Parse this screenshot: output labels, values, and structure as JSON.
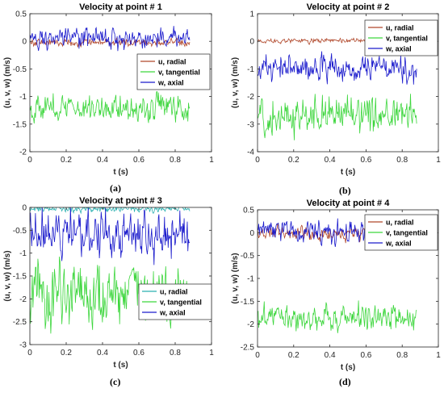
{
  "labels": [
    "(a)",
    "(b)",
    "(c)",
    "(d)"
  ],
  "chart_data": [
    {
      "type": "line",
      "title": "Velocity at point # 1",
      "xlabel": "t (s)",
      "ylabel": "(u, v, w) (m/s)",
      "xlim": [
        0,
        1
      ],
      "ylim": [
        -2,
        0.5
      ],
      "xticks": [
        "0",
        "0.2",
        "0.4",
        "0.6",
        "0.8",
        "1"
      ],
      "yticks": [
        "-2",
        "-1.5",
        "-1",
        "-0.5",
        "0",
        "0.5"
      ],
      "x_range": [
        0,
        0.88
      ],
      "legend": "right",
      "series": [
        {
          "name": "u, radial",
          "color": "#b0472a",
          "mean": -0.02,
          "amp": 0.05
        },
        {
          "name": "v, tangential",
          "color": "#3cd63c",
          "mean": -1.2,
          "amp": 0.17
        },
        {
          "name": "w, axial",
          "color": "#1a1acc",
          "mean": 0.05,
          "amp": 0.13
        }
      ]
    },
    {
      "type": "line",
      "title": "Velocity at point # 2",
      "xlabel": "t (s)",
      "ylabel": "(u, v, w) (m/s)",
      "xlim": [
        0,
        1
      ],
      "ylim": [
        -4,
        1
      ],
      "xticks": [
        "0",
        "0.2",
        "0.4",
        "0.6",
        "0.8",
        "1"
      ],
      "yticks": [
        "-4",
        "-3",
        "-2",
        "-1",
        "0",
        "1"
      ],
      "x_range": [
        0,
        0.88
      ],
      "legend": "top-right",
      "series": [
        {
          "name": "u, radial",
          "color": "#b0472a",
          "mean": 0.02,
          "amp": 0.06
        },
        {
          "name": "v, tangential",
          "color": "#3cd63c",
          "mean": -2.7,
          "amp": 0.45
        },
        {
          "name": "w, axial",
          "color": "#1a1acc",
          "mean": -1.0,
          "amp": 0.35
        }
      ]
    },
    {
      "type": "line",
      "title": "Velocity at point # 3",
      "xlabel": "t (s)",
      "ylabel": "(u, v, w) (m/s)",
      "xlim": [
        0,
        1
      ],
      "ylim": [
        -3,
        0
      ],
      "xticks": [
        "0",
        "0.2",
        "0.4",
        "0.6",
        "0.8",
        "1"
      ],
      "yticks": [
        "-3",
        "-2.5",
        "-2",
        "-1.5",
        "-1",
        "-0.5",
        "0"
      ],
      "x_range": [
        0,
        0.88
      ],
      "legend": "bottom-right",
      "series": [
        {
          "name": "u, radial",
          "color": "#2ab0b0",
          "mean": -0.03,
          "amp": 0.05
        },
        {
          "name": "v, tangential",
          "color": "#3cd63c",
          "mean": -1.9,
          "amp": 0.5
        },
        {
          "name": "w, axial",
          "color": "#1a1acc",
          "mean": -0.55,
          "amp": 0.35
        }
      ]
    },
    {
      "type": "line",
      "title": "Velocity at point # 4",
      "xlabel": "t (s)",
      "ylabel": "(u, v, w) (m/s)",
      "xlim": [
        0,
        1
      ],
      "ylim": [
        -2.5,
        0.5
      ],
      "xticks": [
        "0",
        "0.2",
        "0.4",
        "0.6",
        "0.8",
        "1"
      ],
      "yticks": [
        "-2.5",
        "-2",
        "-1.5",
        "-1",
        "-0.5",
        "0",
        "0.5"
      ],
      "x_range": [
        0,
        0.88
      ],
      "legend": "top-right",
      "series": [
        {
          "name": "u, radial",
          "color": "#b0472a",
          "mean": -0.02,
          "amp": 0.1
        },
        {
          "name": "v, tangential",
          "color": "#3cd63c",
          "mean": -1.85,
          "amp": 0.2
        },
        {
          "name": "w, axial",
          "color": "#1a1acc",
          "mean": 0.05,
          "amp": 0.17
        }
      ]
    }
  ]
}
